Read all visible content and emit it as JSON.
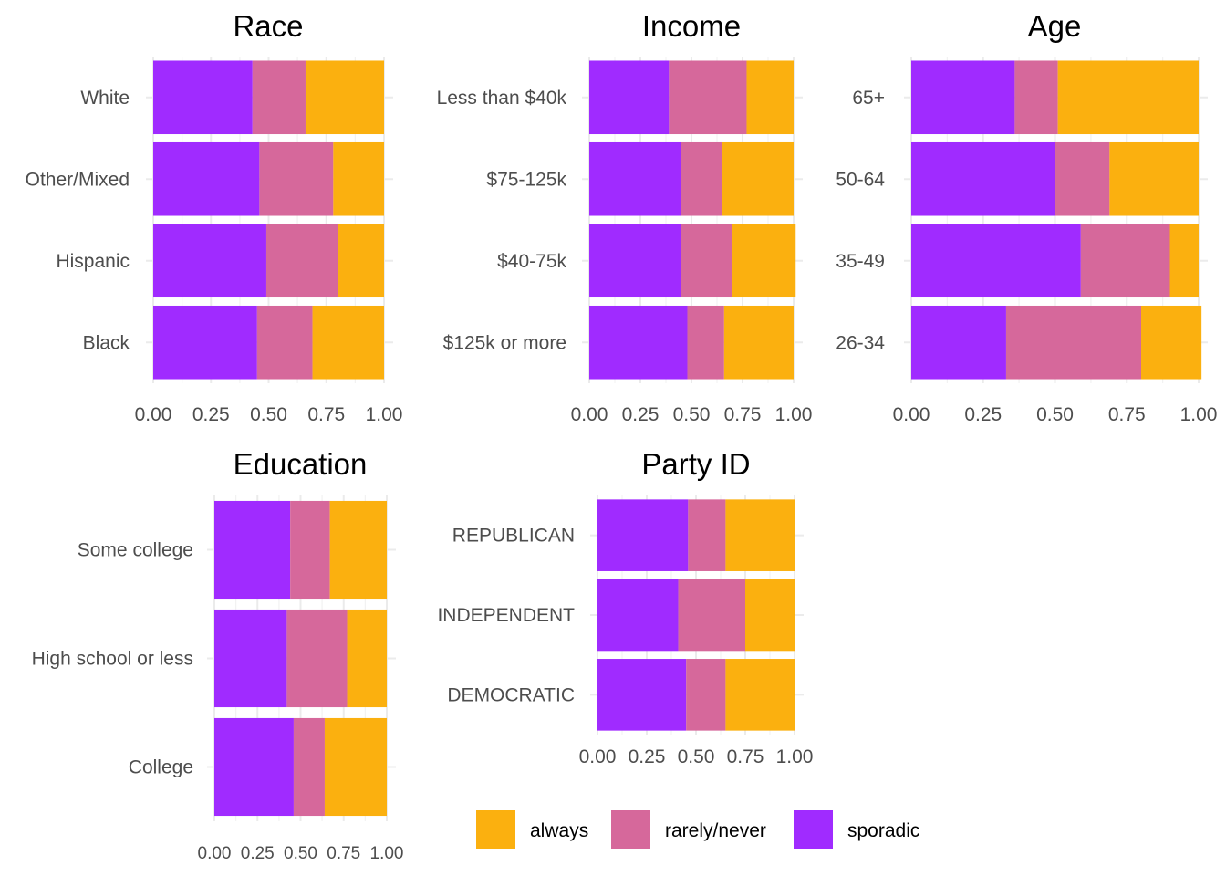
{
  "chart_data": [
    {
      "type": "bar",
      "orientation": "horizontal",
      "stacked": true,
      "title": "Race",
      "categories": [
        "White",
        "Other/Mixed",
        "Hispanic",
        "Black"
      ],
      "series": [
        {
          "name": "sporadic",
          "values": [
            0.43,
            0.46,
            0.49,
            0.45
          ]
        },
        {
          "name": "rarely/never",
          "values": [
            0.23,
            0.32,
            0.31,
            0.24
          ]
        },
        {
          "name": "always",
          "values": [
            0.34,
            0.22,
            0.2,
            0.31
          ]
        }
      ],
      "xlim": [
        0,
        1
      ],
      "xticks": [
        "0.00",
        "0.25",
        "0.50",
        "0.75",
        "1.00"
      ],
      "grid": true
    },
    {
      "type": "bar",
      "orientation": "horizontal",
      "stacked": true,
      "title": "Income",
      "categories": [
        "Less than $40k",
        "$75-125k",
        "$40-75k",
        "$125k or more"
      ],
      "series": [
        {
          "name": "sporadic",
          "values": [
            0.39,
            0.45,
            0.45,
            0.48
          ]
        },
        {
          "name": "rarely/never",
          "values": [
            0.38,
            0.2,
            0.25,
            0.18
          ]
        },
        {
          "name": "always",
          "values": [
            0.23,
            0.35,
            0.31,
            0.34
          ]
        }
      ],
      "xlim": [
        0,
        1
      ],
      "xticks": [
        "0.00",
        "0.25",
        "0.50",
        "0.75",
        "1.00"
      ],
      "grid": true
    },
    {
      "type": "bar",
      "orientation": "horizontal",
      "stacked": true,
      "title": "Age",
      "categories": [
        "65+",
        "50-64",
        "35-49",
        "26-34"
      ],
      "series": [
        {
          "name": "sporadic",
          "values": [
            0.36,
            0.5,
            0.59,
            0.33
          ]
        },
        {
          "name": "rarely/never",
          "values": [
            0.15,
            0.19,
            0.31,
            0.47
          ]
        },
        {
          "name": "always",
          "values": [
            0.49,
            0.31,
            0.1,
            0.21
          ]
        }
      ],
      "xlim": [
        0,
        1
      ],
      "xticks": [
        "0.00",
        "0.25",
        "0.50",
        "0.75",
        "1.00"
      ],
      "grid": true
    },
    {
      "type": "bar",
      "orientation": "horizontal",
      "stacked": true,
      "title": "Education",
      "categories": [
        "Some college",
        "High school or less",
        "College"
      ],
      "series": [
        {
          "name": "sporadic",
          "values": [
            0.44,
            0.42,
            0.46
          ]
        },
        {
          "name": "rarely/never",
          "values": [
            0.23,
            0.35,
            0.18
          ]
        },
        {
          "name": "always",
          "values": [
            0.33,
            0.23,
            0.36
          ]
        }
      ],
      "xlim": [
        0,
        1
      ],
      "xticks": [
        "0.00",
        "0.25",
        "0.50",
        "0.75",
        "1.00"
      ],
      "grid": true
    },
    {
      "type": "bar",
      "orientation": "horizontal",
      "stacked": true,
      "title": "Party ID",
      "categories": [
        "REPUBLICAN",
        "INDEPENDENT",
        "DEMOCRATIC"
      ],
      "series": [
        {
          "name": "sporadic",
          "values": [
            0.46,
            0.41,
            0.45
          ]
        },
        {
          "name": "rarely/never",
          "values": [
            0.19,
            0.34,
            0.2
          ]
        },
        {
          "name": "always",
          "values": [
            0.35,
            0.25,
            0.35
          ]
        }
      ],
      "xlim": [
        0,
        1
      ],
      "xticks": [
        "0.00",
        "0.25",
        "0.50",
        "0.75",
        "1.00"
      ],
      "grid": true
    }
  ],
  "legend": {
    "items": [
      {
        "label": "always",
        "color": "#FBB00F"
      },
      {
        "label": "rarely/never",
        "color": "#D6689B"
      },
      {
        "label": "sporadic",
        "color": "#A02BFF"
      }
    ]
  },
  "colors": {
    "sporadic": "#A02BFF",
    "rarely/never": "#D6689B",
    "always": "#FBB00F"
  }
}
